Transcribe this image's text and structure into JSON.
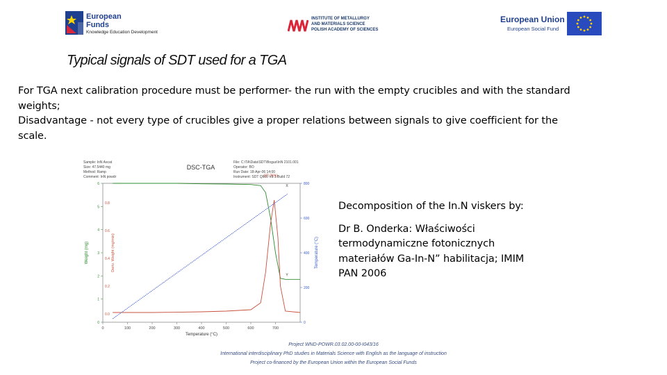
{
  "header": {
    "eu_funds": {
      "line1": "European",
      "line2": "Funds",
      "line3": "Knowledge Education Development"
    },
    "institute": {
      "line1": "INSTITUTE OF METALLURGY",
      "line2": "AND MATERIALS SCIENCE",
      "line3": "POLISH ACADEMY OF SCIENCES"
    },
    "eu_union": {
      "line1": "European Union",
      "line2": "European Social Fund"
    },
    "colors": {
      "eu_blue": "#1f3f8f",
      "imim_red": "#d9263a",
      "eu_flag_blue": "#2a4bbd",
      "eu_star_yellow": "#ffd400"
    }
  },
  "slide": {
    "title": "Typical signals of  SDT used  for a TGA",
    "paragraphs": [
      "For TGA next calibration procedure must be performer- the run with the empty crucibles and with the standard weights;",
      "Disadvantage - not every type of crucibles give a proper relations between signals to give coefficient for the scale."
    ],
    "decomposition": {
      "heading": "Decomposition of the In.N viskers by:",
      "reference": "Dr B. Onderka: Właściwości termodynamiczne fotonicznych materiałów Ga-In-N” habilitacja; IMIM PAN 2006"
    }
  },
  "chart_data": {
    "type": "line",
    "title": "DSC-TGA",
    "info_left": [
      "Sample: InN Ascat",
      "Size: 47.5440 mg",
      "Method: Ramp",
      "Comment: InN powdr"
    ],
    "info_right": [
      "File: C:\\TA\\Data\\SDT\\Bogus\\InN 2101.001",
      "Operator: BO",
      "Run Date: 18-Apr-06 14:00",
      "Instrument: SDT Q600 V8.1 Build 72"
    ],
    "xlabel": "Temperature (°C)",
    "ylabel_left": "Weight (mg)",
    "ylabel_mid": "Deriv. Weight (mg/min)",
    "ylabel_right": "Temperature (°C)",
    "xlim": [
      0,
      800
    ],
    "x_ticks": [
      "0",
      "100",
      "200",
      "300",
      "400",
      "500",
      "600",
      "700"
    ],
    "y_left_ticks": [
      "0",
      "1",
      "2",
      "3",
      "4",
      "5",
      "6"
    ],
    "y_deriv_ticks": [
      "0.0",
      "0.2",
      "0.4",
      "0.6",
      "0.8"
    ],
    "y_right_ticks": [
      "0",
      "200",
      "400",
      "600",
      "800"
    ],
    "annotation": "(37.76%)",
    "markers": [
      "X",
      "Y"
    ],
    "footer_note": "Universal V4.2E TA Instruments",
    "series": [
      {
        "name": "Weight",
        "color": "#2e8b2e",
        "x": [
          40,
          100,
          200,
          300,
          400,
          500,
          600,
          640,
          660,
          680,
          700,
          720,
          740,
          800
        ],
        "y": [
          6.0,
          6.0,
          6.0,
          6.0,
          5.98,
          5.97,
          5.95,
          5.9,
          5.6,
          4.5,
          3.0,
          1.9,
          1.85,
          1.85
        ]
      },
      {
        "name": "Deriv. Weight",
        "color": "#c8503c",
        "x": [
          40,
          100,
          200,
          300,
          400,
          500,
          600,
          640,
          660,
          680,
          695,
          710,
          720,
          740,
          800
        ],
        "y": [
          0.01,
          0.01,
          0.01,
          0.012,
          0.015,
          0.02,
          0.03,
          0.08,
          0.3,
          0.65,
          0.82,
          0.55,
          0.2,
          0.02,
          0.01
        ]
      },
      {
        "name": "Temperature",
        "color": "#3a5bd0",
        "x": [
          40,
          750
        ],
        "y": [
          20,
          740
        ]
      }
    ]
  },
  "footer": {
    "line1": "Project WND-POWR.03.02.00-00-I043/16",
    "line2": "International interdisciplinary PhD studies in Materials Science with English as the language of instruction",
    "line3": "Project co-financed by the European Union within the European Social Funds"
  }
}
